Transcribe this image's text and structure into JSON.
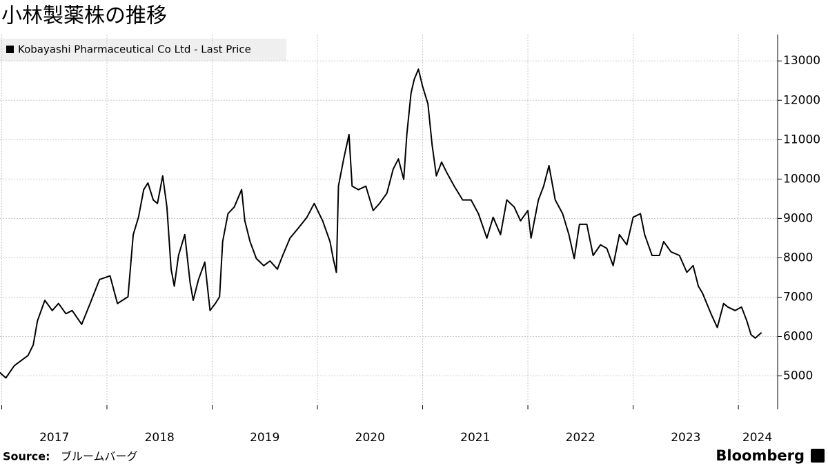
{
  "chart_data": {
    "type": "line",
    "title": "小林製薬株の推移",
    "source_label": "Source:",
    "source": "ブルームバーグ",
    "brand": "Bloomberg",
    "x": [
      2016.98,
      2017.04,
      2017.12,
      2017.25,
      2017.3,
      2017.34,
      2017.41,
      2017.48,
      2017.54,
      2017.61,
      2017.67,
      2017.76,
      2017.84,
      2017.93,
      2018.03,
      2018.1,
      2018.2,
      2018.25,
      2018.3,
      2018.35,
      2018.39,
      2018.44,
      2018.48,
      2018.53,
      2018.57,
      2018.61,
      2018.64,
      2018.68,
      2018.74,
      2018.79,
      2018.82,
      2018.87,
      2018.93,
      2018.98,
      2019.03,
      2019.07,
      2019.1,
      2019.15,
      2019.21,
      2019.28,
      2019.31,
      2019.36,
      2019.42,
      2019.49,
      2019.55,
      2019.62,
      2019.67,
      2019.74,
      2019.82,
      2019.9,
      2019.97,
      2020.05,
      2020.12,
      2020.15,
      2020.18,
      2020.2,
      2020.25,
      2020.3,
      2020.33,
      2020.39,
      2020.46,
      2020.53,
      2020.59,
      2020.66,
      2020.72,
      2020.77,
      2020.82,
      2020.85,
      2020.89,
      2020.92,
      2020.96,
      2021.0,
      2021.05,
      2021.09,
      2021.13,
      2021.18,
      2021.23,
      2021.3,
      2021.38,
      2021.46,
      2021.53,
      2021.61,
      2021.67,
      2021.74,
      2021.8,
      2021.87,
      2021.93,
      2022.0,
      2022.03,
      2022.1,
      2022.15,
      2022.2,
      2022.26,
      2022.33,
      2022.39,
      2022.44,
      2022.49,
      2022.56,
      2022.62,
      2022.69,
      2022.75,
      2022.81,
      2022.87,
      2022.94,
      2023.0,
      2023.07,
      2023.11,
      2023.18,
      2023.25,
      2023.29,
      2023.36,
      2023.44,
      2023.51,
      2023.57,
      2023.62,
      2023.66,
      2023.74,
      2023.8,
      2023.86,
      2023.9,
      2023.97,
      2024.03,
      2024.08,
      2024.12,
      2024.16,
      2024.22
    ],
    "series": [
      {
        "name": "Kobayashi Pharmaceutical Co Ltd - Last Price",
        "color": "#000000",
        "values": [
          5090,
          4950,
          5260,
          5520,
          5790,
          6400,
          6920,
          6660,
          6840,
          6580,
          6660,
          6310,
          6840,
          7450,
          7540,
          6840,
          7010,
          8590,
          9030,
          9730,
          9900,
          9470,
          9380,
          10080,
          9290,
          7710,
          7280,
          8060,
          8590,
          7370,
          6920,
          7450,
          7890,
          6660,
          6840,
          7010,
          8410,
          9120,
          9290,
          9730,
          8940,
          8410,
          7980,
          7800,
          7920,
          7710,
          8060,
          8500,
          8760,
          9030,
          9380,
          8940,
          8410,
          7980,
          7630,
          9820,
          10510,
          11130,
          9820,
          9730,
          9820,
          9200,
          9380,
          9640,
          10250,
          10510,
          9990,
          11130,
          12180,
          12530,
          12790,
          12350,
          11910,
          10860,
          10080,
          10430,
          10160,
          9820,
          9470,
          9470,
          9120,
          8500,
          9030,
          8590,
          9470,
          9290,
          8940,
          9200,
          8500,
          9470,
          9820,
          10340,
          9470,
          9120,
          8590,
          7980,
          8850,
          8850,
          8060,
          8330,
          8240,
          7800,
          8590,
          8330,
          9030,
          9120,
          8590,
          8060,
          8060,
          8410,
          8150,
          8060,
          7630,
          7800,
          7280,
          7100,
          6580,
          6230,
          6840,
          6750,
          6660,
          6750,
          6400,
          6050,
          5960,
          6100
        ]
      }
    ],
    "xlim": [
      2016.984,
      2024.36
    ],
    "xticks": [
      2017,
      2018,
      2019,
      2020,
      2021,
      2022,
      2023,
      2024
    ],
    "ylim": [
      4150,
      13670
    ],
    "yticks": [
      5000,
      6000,
      7000,
      8000,
      9000,
      10000,
      11000,
      12000,
      13000
    ],
    "grid": true
  }
}
